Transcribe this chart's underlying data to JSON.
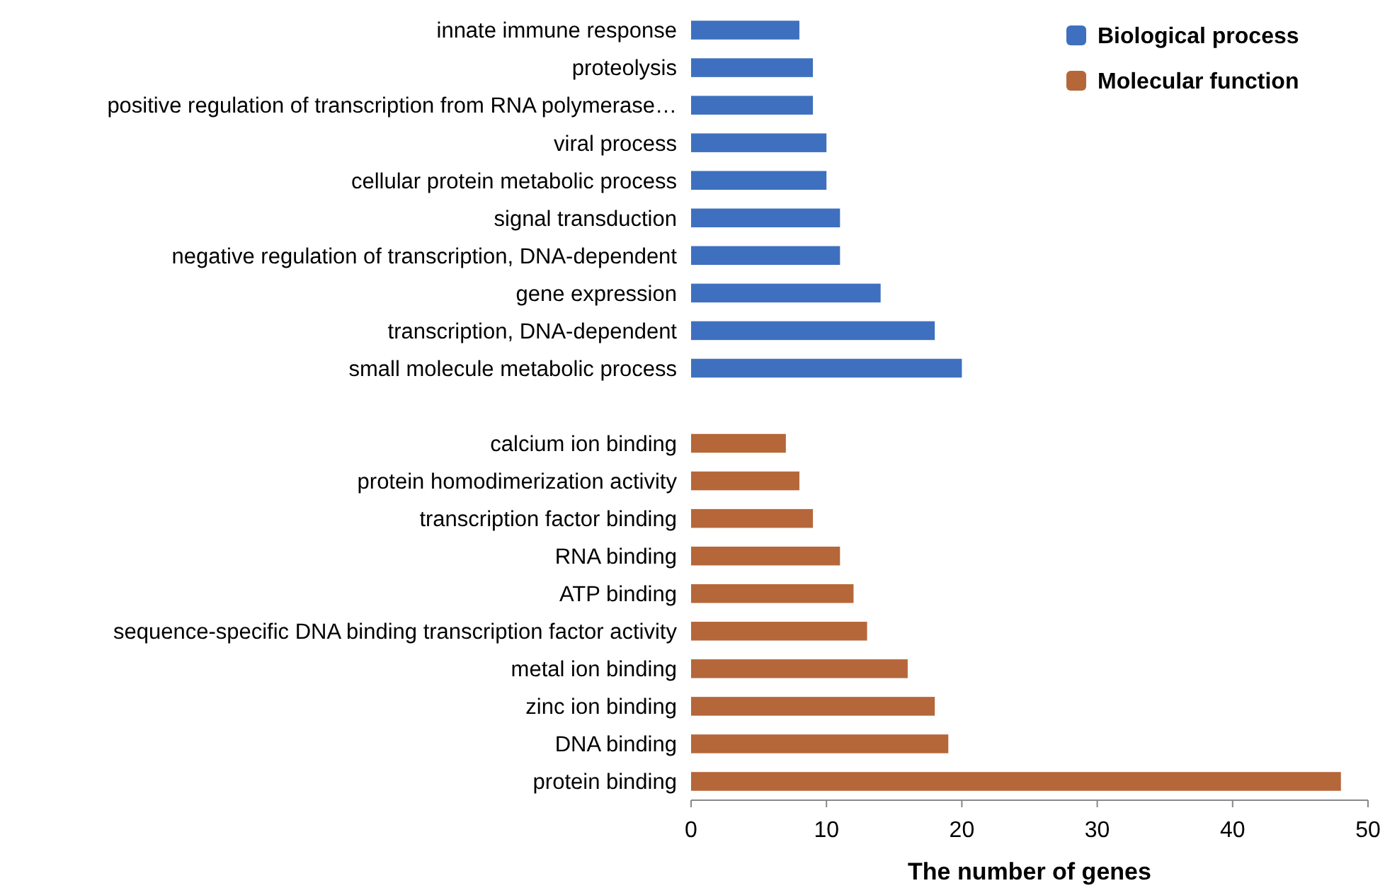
{
  "chart_data": {
    "type": "bar",
    "orientation": "horizontal",
    "xlabel": "The number of genes",
    "categories": [
      "innate immune response",
      "proteolysis",
      "positive regulation of transcription from RNA polymerase…",
      "viral process",
      "cellular protein metabolic process",
      "signal transduction",
      "negative regulation of transcription, DNA-dependent",
      "gene expression",
      "transcription, DNA-dependent",
      "small molecule metabolic process",
      null,
      "calcium ion binding",
      "protein homodimerization activity",
      "transcription factor binding",
      "RNA binding",
      "ATP binding",
      "sequence-specific DNA binding transcription factor activity",
      "metal ion binding",
      "zinc ion binding",
      "DNA binding",
      "protein binding"
    ],
    "series": [
      {
        "name": "Biological process",
        "color": "#3e70bf",
        "values": [
          8,
          9,
          9,
          10,
          10,
          11,
          11,
          14,
          18,
          20,
          null,
          null,
          null,
          null,
          null,
          null,
          null,
          null,
          null,
          null,
          null
        ]
      },
      {
        "name": "Molecular function",
        "color": "#b5673a",
        "values": [
          null,
          null,
          null,
          null,
          null,
          null,
          null,
          null,
          null,
          null,
          null,
          7,
          8,
          9,
          11,
          12,
          13,
          16,
          18,
          19,
          48
        ]
      }
    ],
    "xlim": [
      0,
      50
    ],
    "xticks": [
      0,
      10,
      20,
      30,
      40,
      50
    ],
    "grid": false,
    "legend": "top right"
  }
}
